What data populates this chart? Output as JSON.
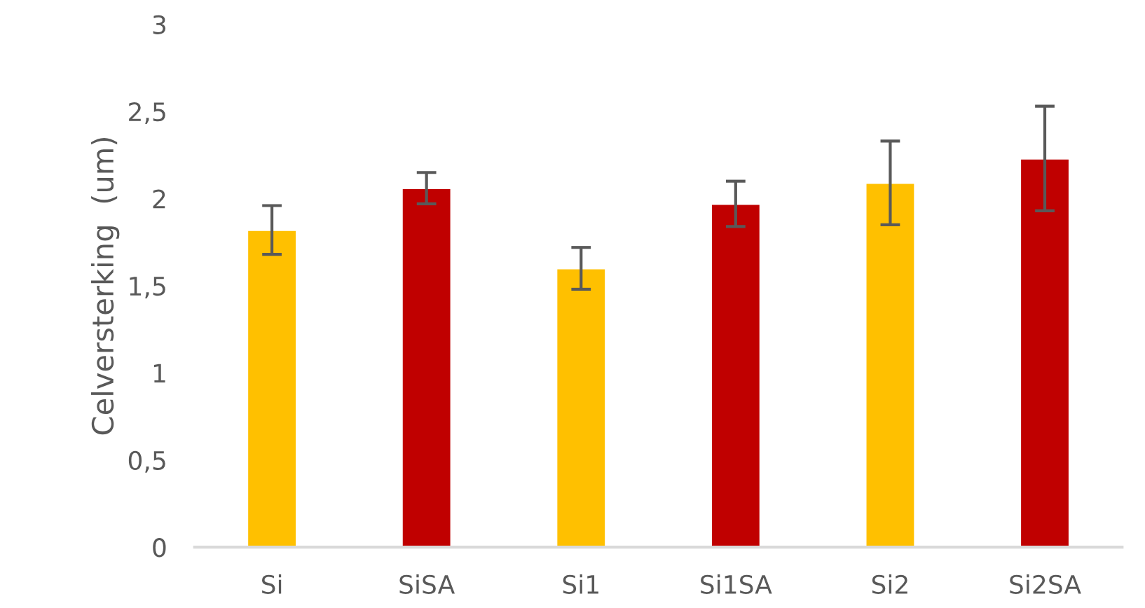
{
  "chart_data": {
    "type": "bar",
    "ylabel": "Celversterking  (um)",
    "categories": [
      "Si",
      "SiSA",
      "Si1",
      "Si1SA",
      "Si2",
      "Si2SA"
    ],
    "values": [
      1.82,
      2.06,
      1.6,
      1.97,
      2.09,
      2.23
    ],
    "errors": [
      0.14,
      0.09,
      0.12,
      0.13,
      0.24,
      0.3
    ],
    "colors": [
      "#ffc000",
      "#c00000",
      "#ffc000",
      "#c00000",
      "#ffc000",
      "#c00000"
    ],
    "ylim": [
      0,
      3
    ],
    "yticks": [
      0,
      {
        "value": 0.5,
        "label": "0,5"
      },
      1,
      {
        "value": 1.5,
        "label": "1,5"
      },
      2,
      {
        "value": 2.5,
        "label": "2,5"
      },
      3
    ],
    "grid": false,
    "legend": false
  }
}
